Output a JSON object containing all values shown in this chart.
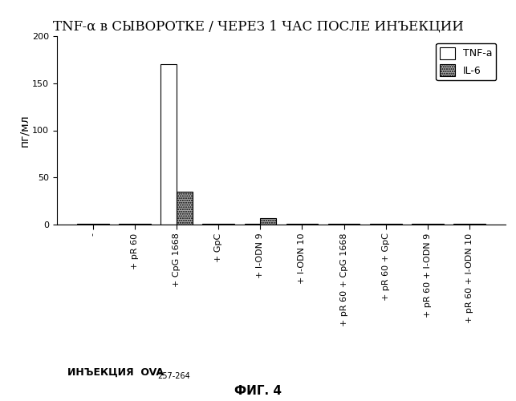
{
  "title_part1": "TNF-",
  "title_alpha": "α",
  "title_part2": " в СЫВОРОТКЕ / ЧЕРЕЗ 1 ЧАС ПОСЛЕ ИНЪЕКЦИИ",
  "ylabel": "пг/мл",
  "xlabel_main": "ИНЪЕКЦИЯ  OVA",
  "xlabel_sub": "257-264",
  "fig_label": "ФИГ. 4",
  "ylim": [
    0,
    200
  ],
  "yticks": [
    0,
    50,
    100,
    150,
    200
  ],
  "categories": [
    "-",
    "+ pR 60",
    "+ CpG 1668",
    "+ GpC",
    "+ I-ODN 9",
    "+ I-ODN 10",
    "+ pR 60 + CpG 1668",
    "+ pR 60 + GpC",
    "+ pR 60 + I-ODN 9",
    "+ pR 60 + I-ODN 10"
  ],
  "tnf_values": [
    0.5,
    0.5,
    170,
    0.5,
    0.5,
    0.5,
    0.5,
    0.5,
    0.5,
    0.5
  ],
  "il6_values": [
    0.5,
    0.5,
    35,
    0.5,
    7,
    0.5,
    0.5,
    0.5,
    0.5,
    0.5
  ],
  "tnf_color": "#ffffff",
  "il6_color": "#aaaaaa",
  "bar_edge_color": "#000000",
  "bar_width": 0.38,
  "legend_tnf": "TNF-a",
  "legend_il6": "IL-6",
  "background_color": "#ffffff",
  "title_fontsize": 14,
  "tick_fontsize": 8,
  "ylabel_fontsize": 10,
  "n_splits": 5,
  "split_label_idx": 5
}
